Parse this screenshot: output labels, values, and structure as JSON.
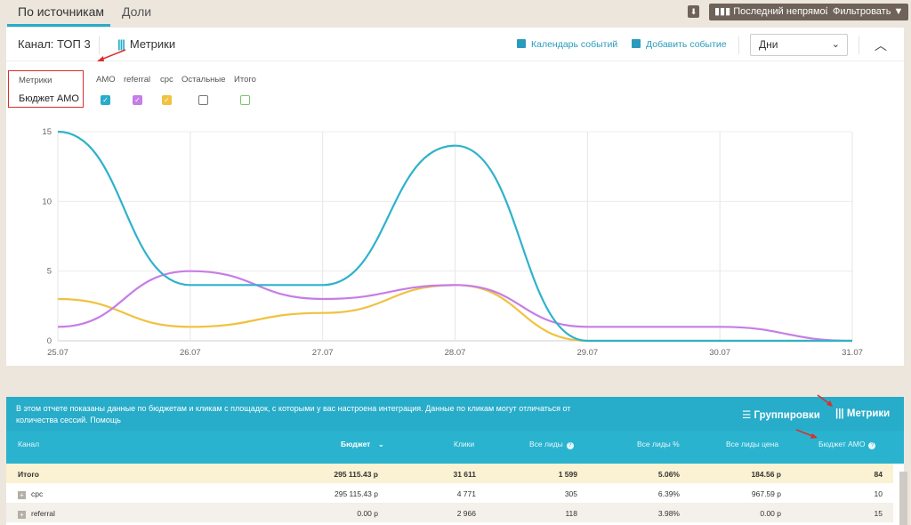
{
  "tabs": [
    {
      "label": "По источникам",
      "active": true
    },
    {
      "label": "Доли",
      "active": false
    }
  ],
  "toolbar": {
    "last_indirect_label": "Последний непрямой",
    "filter_label": "Фильтровать"
  },
  "panel": {
    "channel_title": "Канал: ТОП 3",
    "metrics_label": "Метрики",
    "calendar_label": "Календарь событий",
    "add_event_label": "Добавить событие",
    "period_value": "Дни"
  },
  "metric_selector": {
    "label": "Метрики",
    "value": "Бюджет АМО"
  },
  "legend": [
    {
      "label": "AMO",
      "color": "#27acc9",
      "checked": true
    },
    {
      "label": "referral",
      "color": "#c67de6",
      "checked": true
    },
    {
      "label": "cpc",
      "color": "#f0c240",
      "checked": true
    },
    {
      "label": "Остальные",
      "color": "#888888",
      "checked": false
    },
    {
      "label": "Итого",
      "color": "#7bc56b",
      "checked": false
    }
  ],
  "chart_data": {
    "type": "line",
    "x": [
      "25.07",
      "26.07",
      "27.07",
      "28.07",
      "29.07",
      "30.07",
      "31.07"
    ],
    "y_ticks": [
      "0",
      "5",
      "10",
      "15"
    ],
    "ylim": [
      0,
      15
    ],
    "grid": true,
    "series": [
      {
        "name": "AMO",
        "color": "#2eb2cb",
        "values": [
          15,
          4,
          4,
          14,
          0,
          0,
          0
        ]
      },
      {
        "name": "referral",
        "color": "#c67de6",
        "values": [
          1,
          5,
          3,
          4,
          1,
          1,
          0
        ]
      },
      {
        "name": "cpc",
        "color": "#f0c240",
        "values": [
          3,
          1,
          2,
          4,
          0,
          0,
          0
        ]
      }
    ]
  },
  "table": {
    "info_text": "В этом отчете показаны данные по бюджетам и кликам с площадок, с которыми у вас настроена интеграция. Данные по кликам могут отличаться от количества сессий. Помощь",
    "grouping_label": "Группировки",
    "metrics_label": "Метрики",
    "headers": {
      "channel": "Канал",
      "budget": "Бюджет",
      "clicks": "Клики",
      "all_leads": "Все лиды",
      "all_leads_pct": "Все лиды %",
      "all_leads_price": "Все лиды цена",
      "budget_amo": "Бюджет АМО"
    },
    "rows": [
      {
        "channel": "Итого",
        "budget": "295 115.43 р",
        "clicks": "31 611",
        "all_leads": "1 599",
        "all_leads_pct": "5.06%",
        "all_leads_price": "184.56 р",
        "budget_amo": "84"
      },
      {
        "channel": "cpc",
        "budget": "295 115.43 р",
        "clicks": "4 771",
        "all_leads": "305",
        "all_leads_pct": "6.39%",
        "all_leads_price": "967.59 р",
        "budget_amo": "10"
      },
      {
        "channel": "referral",
        "budget": "0.00 р",
        "clicks": "2 966",
        "all_leads": "118",
        "all_leads_pct": "3.98%",
        "all_leads_price": "0.00 р",
        "budget_amo": "15"
      }
    ]
  }
}
